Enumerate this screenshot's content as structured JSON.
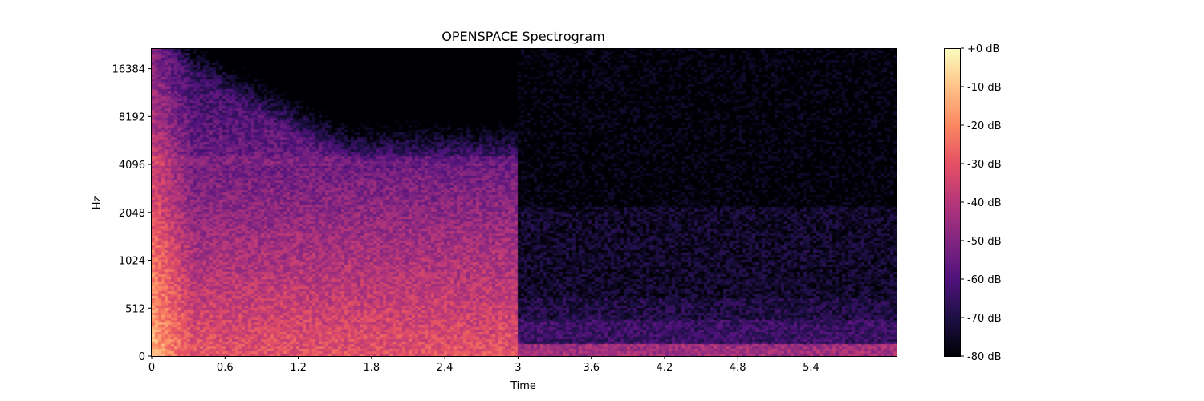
{
  "chart_data": {
    "type": "heatmap",
    "title": "OPENSPACE Spectrogram",
    "xlabel": "Time",
    "ylabel": "Hz",
    "xlim": [
      0,
      6.1
    ],
    "x_ticks": [
      0,
      0.6,
      1.2,
      1.8,
      2.4,
      3,
      3.6,
      4.2,
      4.8,
      5.4
    ],
    "x_tick_labels": [
      "0",
      "0.6",
      "1.2",
      "1.8",
      "2.4",
      "3",
      "3.6",
      "4.2",
      "4.8",
      "5.4"
    ],
    "y_scale": "symlog",
    "ylim": [
      0,
      22050
    ],
    "y_ticks": [
      0,
      512,
      1024,
      2048,
      4096,
      8192,
      16384
    ],
    "y_tick_labels": [
      "0",
      "512",
      "1024",
      "2048",
      "4096",
      "8192",
      "16384"
    ],
    "colorbar": {
      "colormap": "magma",
      "range_db": [
        -80,
        0
      ],
      "ticks": [
        0,
        -10,
        -20,
        -30,
        -40,
        -50,
        -60,
        -70,
        -80
      ],
      "tick_labels": [
        "+0 dB",
        "-10 dB",
        "-20 dB",
        "-30 dB",
        "-40 dB",
        "-50 dB",
        "-60 dB",
        "-70 dB",
        "-80 dB"
      ]
    },
    "description_levels_db": {
      "onset_low_freq": -20,
      "sustain_low_freq_0_to_3s": -30,
      "sustain_mid_freq_0_to_3s": -55,
      "after_cutoff_3s_low_band": -50,
      "after_cutoff_3s_high_freq": -80
    },
    "event_end_time": 3.0
  }
}
